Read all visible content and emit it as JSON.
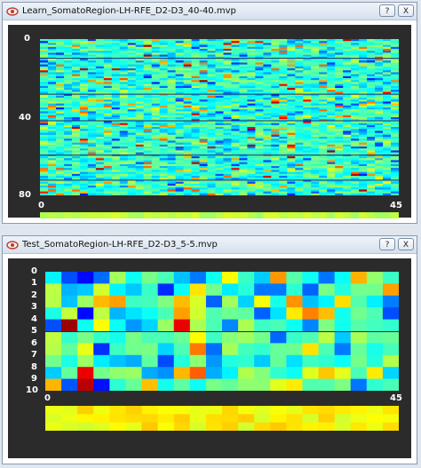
{
  "windows": [
    {
      "title": "Learn_SomatoRegion-LH-RFE_D2-D3_40-40.mvp",
      "help_label": "?",
      "close_label": "X",
      "y_ticks": [
        "0",
        "40",
        "80"
      ],
      "x_ticks": [
        "0",
        "45"
      ],
      "rows": 80,
      "cols": 45,
      "strip_rows": 1,
      "seed": 17,
      "palette_bias": "cyan"
    },
    {
      "title": "Test_SomatoRegion-LH-RFE_D2-D3_5-5.mvp",
      "help_label": "?",
      "close_label": "X",
      "y_ticks": [
        "0",
        "1",
        "2",
        "3",
        "4",
        "5",
        "6",
        "7",
        "8",
        "9",
        "10"
      ],
      "x_ticks": [
        "0",
        "45"
      ],
      "rows": 10,
      "cols": 22,
      "strip_rows": 3,
      "seed": 91,
      "palette_bias": "mixed"
    }
  ],
  "colors": {
    "panel_bg": "#2b2b2b",
    "jet_low": "#00008f",
    "jet_mid": "#40e0d0",
    "jet_high": "#8b0000"
  }
}
